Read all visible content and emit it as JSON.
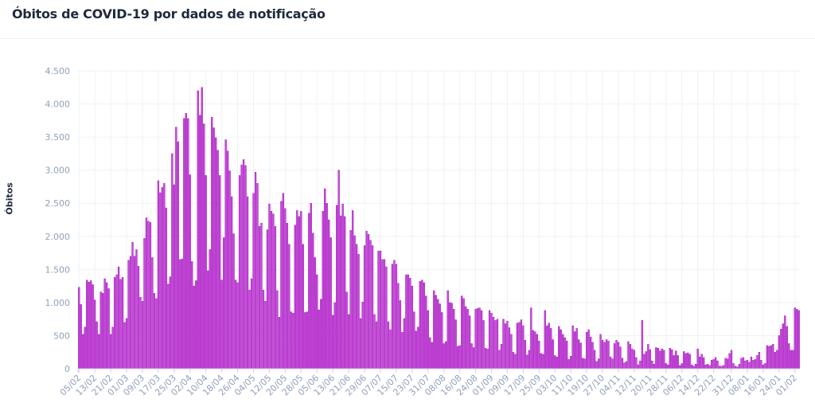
{
  "chart_data": {
    "type": "bar",
    "title": "Óbitos de COVID-19 por dados de notificação",
    "xlabel": "",
    "ylabel": "Óbitos",
    "ylim": [
      0,
      4500
    ],
    "yticks": [
      0,
      500,
      1000,
      1500,
      2000,
      2500,
      3000,
      3500,
      4000,
      4500
    ],
    "ytick_labels": [
      "0",
      "500",
      "1.000",
      "1.500",
      "2.000",
      "2.500",
      "3.000",
      "3.500",
      "4.000",
      "4.500"
    ],
    "grid": true,
    "bar_color": "#c24fd6",
    "bar_edge_color": "#a300bd",
    "start_date": "05/02",
    "xticks": [
      {
        "label": "05/02",
        "day": 0
      },
      {
        "label": "13/02",
        "day": 8
      },
      {
        "label": "21/02",
        "day": 16
      },
      {
        "label": "01/03",
        "day": 24
      },
      {
        "label": "09/03",
        "day": 32
      },
      {
        "label": "17/03",
        "day": 40
      },
      {
        "label": "25/03",
        "day": 48
      },
      {
        "label": "02/04",
        "day": 56
      },
      {
        "label": "10/04",
        "day": 64
      },
      {
        "label": "18/04",
        "day": 72
      },
      {
        "label": "26/04",
        "day": 80
      },
      {
        "label": "04/05",
        "day": 88
      },
      {
        "label": "12/05",
        "day": 96
      },
      {
        "label": "20/05",
        "day": 104
      },
      {
        "label": "28/05",
        "day": 112
      },
      {
        "label": "05/06",
        "day": 120
      },
      {
        "label": "13/06",
        "day": 128
      },
      {
        "label": "21/06",
        "day": 136
      },
      {
        "label": "29/06",
        "day": 144
      },
      {
        "label": "07/07",
        "day": 152
      },
      {
        "label": "15/07",
        "day": 160
      },
      {
        "label": "23/07",
        "day": 168
      },
      {
        "label": "31/07",
        "day": 176
      },
      {
        "label": "08/08",
        "day": 184
      },
      {
        "label": "16/08",
        "day": 192
      },
      {
        "label": "24/08",
        "day": 200
      },
      {
        "label": "01/09",
        "day": 208
      },
      {
        "label": "09/09",
        "day": 216
      },
      {
        "label": "17/09",
        "day": 224
      },
      {
        "label": "25/09",
        "day": 232
      },
      {
        "label": "03/10",
        "day": 240
      },
      {
        "label": "11/10",
        "day": 248
      },
      {
        "label": "19/10",
        "day": 256
      },
      {
        "label": "27/10",
        "day": 264
      },
      {
        "label": "04/11",
        "day": 272
      },
      {
        "label": "12/11",
        "day": 280
      },
      {
        "label": "20/11",
        "day": 288
      },
      {
        "label": "28/11",
        "day": 296
      },
      {
        "label": "06/12",
        "day": 304
      },
      {
        "label": "14/12",
        "day": 312
      },
      {
        "label": "22/12",
        "day": 320
      },
      {
        "label": "31/12",
        "day": 329
      },
      {
        "label": "08/01",
        "day": 337
      },
      {
        "label": "16/01",
        "day": 345
      },
      {
        "label": "24/01",
        "day": 353
      },
      {
        "label": "01/02",
        "day": 361
      }
    ],
    "values": [
      1230,
      970,
      520,
      630,
      1340,
      1310,
      1330,
      1270,
      1040,
      710,
      520,
      1160,
      1140,
      1360,
      1300,
      1210,
      520,
      630,
      1380,
      1420,
      1540,
      1350,
      1380,
      700,
      760,
      1640,
      1700,
      1910,
      1700,
      1800,
      1550,
      1080,
      1020,
      1970,
      2280,
      2230,
      2210,
      1680,
      1140,
      1060,
      2840,
      2660,
      2740,
      2800,
      2430,
      1280,
      1390,
      3250,
      2780,
      3650,
      3430,
      1650,
      1660,
      3780,
      3860,
      3780,
      2930,
      1620,
      1250,
      1330,
      4200,
      3830,
      4250,
      3700,
      2920,
      1480,
      1800,
      3800,
      3640,
      3490,
      3300,
      2920,
      1340,
      1980,
      3460,
      3290,
      2990,
      2600,
      2040,
      1340,
      1300,
      2920,
      3080,
      3160,
      3070,
      2600,
      1190,
      1360,
      2650,
      2970,
      2800,
      2150,
      2200,
      1190,
      1020,
      2100,
      2490,
      2380,
      2340,
      2150,
      1180,
      780,
      2530,
      2650,
      2420,
      2200,
      1880,
      860,
      840,
      2170,
      2390,
      2300,
      2380,
      1880,
      850,
      860,
      2350,
      2500,
      2050,
      1680,
      1420,
      890,
      1050,
      2380,
      2720,
      2500,
      2250,
      1980,
      810,
      1000,
      2470,
      3000,
      2310,
      2490,
      2300,
      1160,
      820,
      2090,
      2390,
      2010,
      1880,
      1730,
      760,
      1010,
      1860,
      2080,
      2030,
      1940,
      1860,
      820,
      710,
      1780,
      1780,
      1650,
      1650,
      1540,
      710,
      590,
      1580,
      1640,
      1580,
      1290,
      1030,
      550,
      760,
      1420,
      1420,
      1370,
      1250,
      860,
      570,
      630,
      1320,
      1340,
      1300,
      1100,
      880,
      470,
      400,
      1180,
      1110,
      1050,
      980,
      850,
      380,
      410,
      1180,
      1000,
      990,
      900,
      740,
      340,
      350,
      1100,
      1060,
      940,
      900,
      800,
      380,
      320,
      900,
      910,
      920,
      880,
      730,
      310,
      300,
      880,
      840,
      780,
      730,
      750,
      280,
      370,
      750,
      680,
      720,
      620,
      520,
      250,
      220,
      690,
      700,
      740,
      650,
      430,
      210,
      280,
      920,
      580,
      560,
      520,
      420,
      230,
      220,
      880,
      650,
      690,
      610,
      440,
      200,
      180,
      640,
      590,
      520,
      470,
      420,
      140,
      190,
      650,
      560,
      610,
      440,
      390,
      160,
      150,
      550,
      590,
      480,
      400,
      280,
      110,
      150,
      520,
      430,
      400,
      440,
      420,
      180,
      150,
      380,
      430,
      400,
      330,
      160,
      90,
      110,
      410,
      370,
      300,
      280,
      170,
      60,
      120,
      730,
      220,
      260,
      370,
      290,
      120,
      70,
      320,
      310,
      270,
      300,
      280,
      80,
      60,
      310,
      290,
      200,
      270,
      200,
      50,
      80,
      260,
      230,
      240,
      220,
      60,
      40,
      70,
      300,
      180,
      220,
      170,
      60,
      70,
      50,
      130,
      140,
      170,
      120,
      40,
      40,
      50,
      160,
      150,
      230,
      280,
      80,
      40,
      30,
      70,
      160,
      170,
      120,
      130,
      100,
      180,
      130,
      140,
      200,
      250,
      130,
      60,
      80,
      350,
      340,
      350,
      370,
      250,
      280,
      500,
      600,
      680,
      800,
      640,
      380,
      280,
      280,
      920,
      900,
      880
    ]
  }
}
